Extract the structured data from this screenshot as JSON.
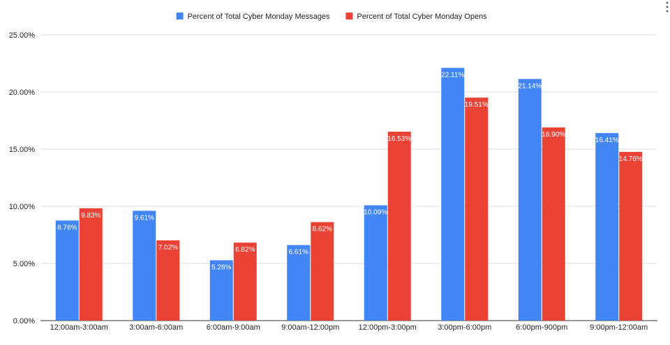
{
  "chart_data": {
    "type": "bar",
    "title": "",
    "xlabel": "",
    "ylabel": "",
    "categories": [
      "12:00am-3:00am",
      "3:00am-6:00am",
      "6:00am-9:00am",
      "9:00am-12:00pm",
      "12:00pm-3:00pm",
      "3:00pm-6:00pm",
      "6:00pm-900pm",
      "9:00pm-12:00am"
    ],
    "series": [
      {
        "name": "Percent of Total Cyber Monday Messages",
        "color": "#4285f4",
        "values": [
          8.76,
          9.61,
          5.28,
          6.61,
          10.09,
          22.11,
          21.14,
          16.41
        ],
        "labels": [
          "8.76%",
          "9.61%",
          "5.28%",
          "6.61%",
          "10.09%",
          "22.11%",
          "21.14%",
          "16.41%"
        ]
      },
      {
        "name": "Percent of Total Cyber Monday Opens",
        "color": "#ea4335",
        "values": [
          9.83,
          7.02,
          6.82,
          8.62,
          16.53,
          19.51,
          16.9,
          14.76
        ],
        "labels": [
          "9.83%",
          "7.02%",
          "6.82%",
          "8.62%",
          "16.53%",
          "19.51%",
          "16.90%",
          "14.76%"
        ]
      }
    ],
    "ylim": [
      0,
      25
    ],
    "yticks": [
      0,
      5,
      10,
      15,
      20,
      25
    ],
    "ytick_labels": [
      "0.00%",
      "5.00%",
      "10.00%",
      "15.00%",
      "20.00%",
      "25.00%"
    ],
    "grid": true,
    "legend_position": "top-center"
  }
}
